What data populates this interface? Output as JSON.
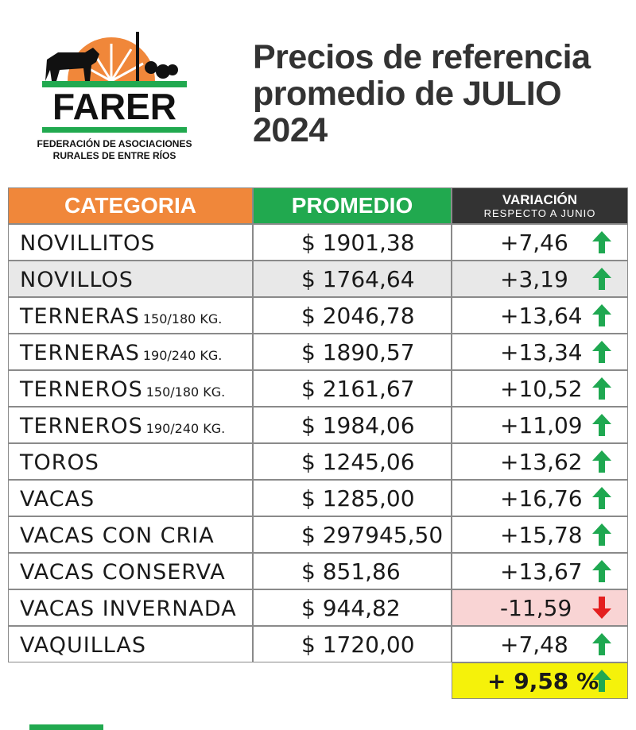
{
  "logo": {
    "name": "FARER",
    "line1": "FEDERACIÓN DE ASOCIACIONES",
    "line2": "RURALES DE ENTRE RÍOS"
  },
  "title": [
    "Precios de referencia",
    "promedio de JULIO",
    "2024"
  ],
  "table": {
    "header": {
      "categoria": "CATEGORIA",
      "promedio": "PROMEDIO",
      "variacion": "VARIACIÓN",
      "variacion_sub": "RESPECTO A JUNIO"
    },
    "rows": [
      {
        "categoria": "NOVILLITOS",
        "promedio": "$ 1901,38",
        "variacion": "+7,46"
      },
      {
        "categoria": "NOVILLOS",
        "promedio": "$ 1764,64",
        "variacion": "+3,19"
      },
      {
        "categoria": "TERNERAS",
        "peso": "150/180 KG.",
        "promedio": "$ 2046,78",
        "variacion": "+13,64"
      },
      {
        "categoria": "TERNERAS",
        "peso": "190/240 KG.",
        "promedio": "$ 1890,57",
        "variacion": "+13,34"
      },
      {
        "categoria": "TERNEROS",
        "peso": "150/180 KG.",
        "promedio": "$ 2161,67",
        "variacion": "+10,52"
      },
      {
        "categoria": "TERNEROS",
        "peso": "190/240 KG.",
        "promedio": "$ 1984,06",
        "variacion": "+11,09"
      },
      {
        "categoria": "TOROS",
        "promedio": "$ 1245,06",
        "variacion": "+13,62"
      },
      {
        "categoria": "VACAS",
        "promedio": "$ 1285,00",
        "variacion": "+16,76"
      },
      {
        "categoria": "VACAS CON CRIA",
        "promedio": "$ 297945,50",
        "variacion": "+15,78"
      },
      {
        "categoria": "VACAS CONSERVA",
        "promedio": "$ 851,86",
        "variacion": "+13,67"
      },
      {
        "categoria": "VACAS INVERNADA",
        "promedio": "$ 944,82",
        "variacion": "-11,59"
      },
      {
        "categoria": "VAQUILLAS",
        "promedio": "$ 1720,00",
        "variacion": "+7,48"
      }
    ],
    "total": "+ 9,58 %"
  }
}
